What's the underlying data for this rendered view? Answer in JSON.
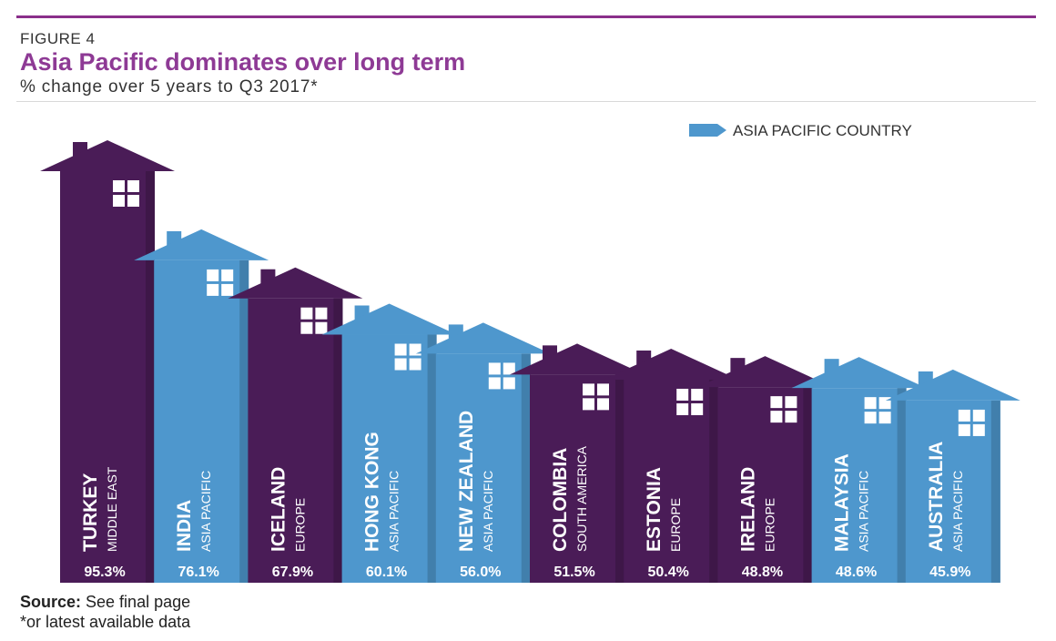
{
  "header": {
    "figure_label": "FIGURE 4",
    "title": "Asia Pacific dominates over long term",
    "subtitle": "% change over 5 years to Q3 2017*"
  },
  "footer": {
    "source_label": "Source:",
    "source_text": " See final page",
    "note": "*or latest available data"
  },
  "colors": {
    "other": "#4a1c57",
    "asia_pacific": "#4e97cd",
    "accent": "#8a2f8a"
  },
  "chart_data": {
    "type": "bar",
    "title": "Asia Pacific dominates over long term",
    "subtitle": "% change over 5 years to Q3 2017*",
    "legend": {
      "label": "ASIA PACIFIC COUNTRY",
      "placement": "top-right"
    },
    "categories": [
      "TURKEY",
      "INDIA",
      "ICELAND",
      "HONG KONG",
      "NEW ZEALAND",
      "COLOMBIA",
      "ESTONIA",
      "IRELAND",
      "MALAYSIA",
      "AUSTRALIA"
    ],
    "regions": [
      "MIDDLE EAST",
      "ASIA PACIFIC",
      "EUROPE",
      "ASIA PACIFIC",
      "ASIA PACIFIC",
      "SOUTH AMERICA",
      "EUROPE",
      "EUROPE",
      "ASIA PACIFIC",
      "ASIA PACIFIC"
    ],
    "values": [
      95.3,
      76.1,
      67.9,
      60.1,
      56.0,
      51.5,
      50.4,
      48.8,
      48.6,
      45.9
    ],
    "value_labels": [
      "95.3%",
      "76.1%",
      "67.9%",
      "60.1%",
      "56.0%",
      "51.5%",
      "50.4%",
      "48.8%",
      "48.6%",
      "45.9%"
    ],
    "asia_pacific": [
      false,
      true,
      false,
      true,
      true,
      false,
      false,
      false,
      true,
      true
    ]
  }
}
